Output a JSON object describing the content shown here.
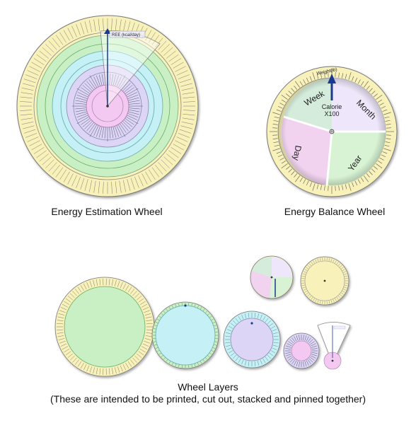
{
  "captions": {
    "estimation": "Energy Estimation Wheel",
    "balance": "Energy Balance Wheel",
    "layers_title": "Wheel Layers",
    "layers_note": "(These are intended to be printed, cut out, stacked and pinned together)"
  },
  "balance_wheel": {
    "weight_label": "Weight(lb)",
    "center_top": "Calorie",
    "center_bottom": "X100",
    "quadrants": [
      "Week",
      "Month",
      "Year",
      "Day"
    ]
  },
  "estimation_wheel": {
    "pointer_label": "REE (kcal/day)"
  },
  "colors": {
    "yellow": "#f8f1b9",
    "green": "#c9f0c4",
    "cyan": "#c4f0f6",
    "lavender": "#ddd5f6",
    "pink": "#f3c8f1",
    "pointer": "#1a3a8f"
  }
}
